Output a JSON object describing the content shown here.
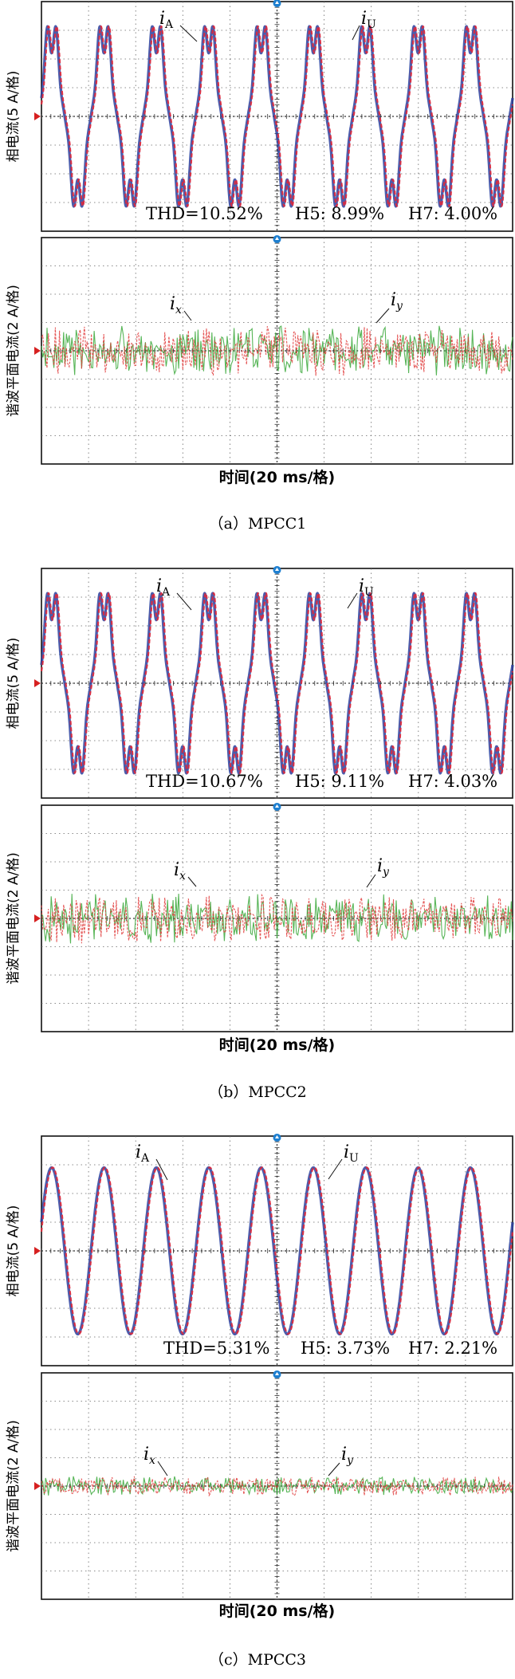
{
  "figure": {
    "y_unit_phase": "相电流(5 A/格)",
    "y_unit_harmonic": "谐波平面电流(2 A/格)",
    "x_unit": "时间(20 ms/格)",
    "colors": {
      "phase_a": "#2b3f9e",
      "phase_u": "#e0283a",
      "harmonic_x": "#e03a3a",
      "harmonic_y": "#3aa83a",
      "grid": "#666666",
      "marker": "#d62020",
      "cursor": "#1e7fd0"
    }
  },
  "chart_data": [
    {
      "type": "line",
      "panel": "MPCC1 phase current",
      "title": "（a）MPCC1",
      "xlabel": "时间(20 ms/格)",
      "ylabel": "相电流(5 A/格)",
      "x_unit": "division (20 ms)",
      "y_unit": "division (5 A)",
      "xlim": [
        0,
        10
      ],
      "ylim": [
        -4,
        4
      ],
      "grid": true,
      "waveform": "flat-top",
      "series": [
        {
          "name": "iA",
          "label": "A",
          "amplitude_div": 2.9,
          "periods_per_screen": 9,
          "phase_rad": 0
        },
        {
          "name": "iU",
          "label": "U",
          "amplitude_div": 2.9,
          "periods_per_screen": 9,
          "phase_rad": -0.12
        }
      ],
      "annotations": [
        "THD=10.52%",
        "H5: 8.99%",
        "H7: 4.00%"
      ]
    },
    {
      "type": "line",
      "panel": "MPCC1 harmonic-plane current",
      "xlabel": "时间(20 ms/格)",
      "ylabel": "谐波平面电流(2 A/格)",
      "xlim": [
        0,
        10
      ],
      "ylim": [
        -4,
        4
      ],
      "grid": true,
      "waveform": "noise",
      "series": [
        {
          "name": "ix",
          "label": "x",
          "amplitude_div": 0.9
        },
        {
          "name": "iy",
          "label": "y",
          "amplitude_div": 0.9
        }
      ]
    },
    {
      "type": "line",
      "panel": "MPCC2 phase current",
      "title": "（b）MPCC2",
      "xlabel": "时间(20 ms/格)",
      "ylabel": "相电流(5 A/格)",
      "xlim": [
        0,
        10
      ],
      "ylim": [
        -4,
        4
      ],
      "grid": true,
      "waveform": "flat-top",
      "series": [
        {
          "name": "iA",
          "label": "A",
          "amplitude_div": 2.9,
          "periods_per_screen": 9,
          "phase_rad": 0
        },
        {
          "name": "iU",
          "label": "U",
          "amplitude_div": 2.9,
          "periods_per_screen": 9,
          "phase_rad": -0.12
        }
      ],
      "annotations": [
        "THD=10.67%",
        "H5: 9.11%",
        "H7: 4.03%"
      ]
    },
    {
      "type": "line",
      "panel": "MPCC2 harmonic-plane current",
      "xlabel": "时间(20 ms/格)",
      "ylabel": "谐波平面电流(2 A/格)",
      "xlim": [
        0,
        10
      ],
      "ylim": [
        -4,
        4
      ],
      "grid": true,
      "waveform": "noise",
      "series": [
        {
          "name": "ix",
          "label": "x",
          "amplitude_div": 0.9
        },
        {
          "name": "iy",
          "label": "y",
          "amplitude_div": 0.9
        }
      ]
    },
    {
      "type": "line",
      "panel": "MPCC3 phase current",
      "title": "（c）MPCC3",
      "xlabel": "时间(20 ms/格)",
      "ylabel": "相电流(5 A/格)",
      "xlim": [
        0,
        10
      ],
      "ylim": [
        -4,
        4
      ],
      "grid": true,
      "waveform": "sine",
      "series": [
        {
          "name": "iA",
          "label": "A",
          "amplitude_div": 2.9,
          "periods_per_screen": 9,
          "phase_rad": 0
        },
        {
          "name": "iU",
          "label": "U",
          "amplitude_div": 2.9,
          "periods_per_screen": 9,
          "phase_rad": -0.12
        }
      ],
      "annotations": [
        "THD=5.31%",
        "H5: 3.73%",
        "H7: 2.21%"
      ]
    },
    {
      "type": "line",
      "panel": "MPCC3 harmonic-plane current",
      "xlabel": "时间(20 ms/格)",
      "ylabel": "谐波平面电流(2 A/格)",
      "xlim": [
        0,
        10
      ],
      "ylim": [
        -4,
        4
      ],
      "grid": true,
      "waveform": "noise",
      "series": [
        {
          "name": "ix",
          "label": "x",
          "amplitude_div": 0.35
        },
        {
          "name": "iy",
          "label": "y",
          "amplitude_div": 0.35
        }
      ]
    }
  ]
}
